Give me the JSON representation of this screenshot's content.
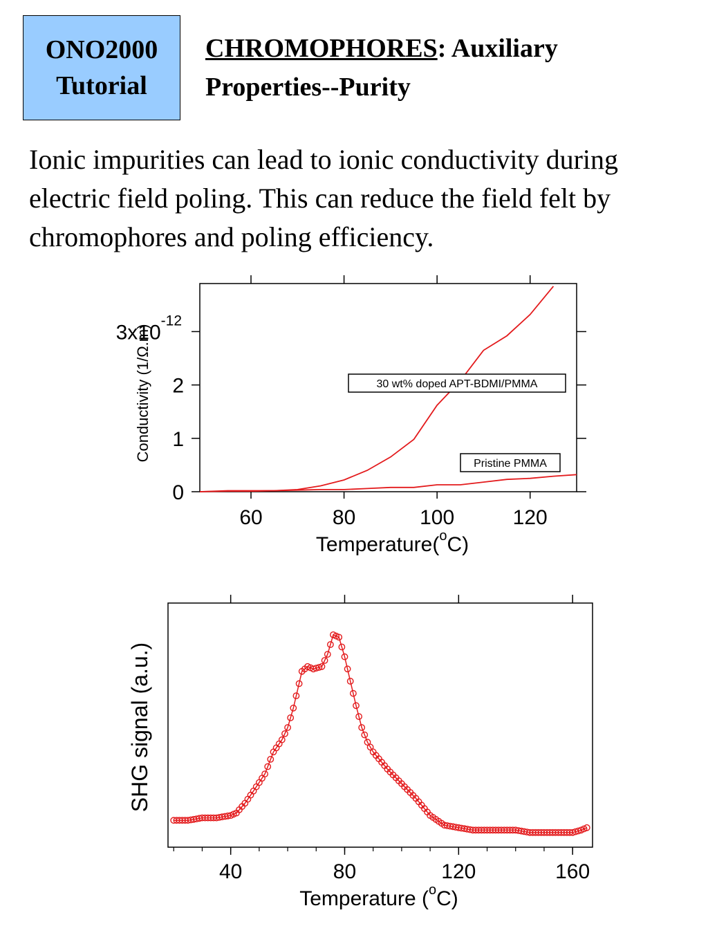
{
  "header": {
    "badge_line1": "ONO2000",
    "badge_line2": "Tutorial",
    "title_underlined": "CHROMOPHORES",
    "title_rest_1": ":  Auxiliary",
    "title_line2": "Properties--Purity",
    "accent_color": "#99ccff"
  },
  "body": {
    "line1": "Ionic impurities can lead to ionic conductivity during",
    "line2": "electric field poling.  This can reduce the field felt by",
    "line3": "chromophores and poling efficiency."
  },
  "chart_data": [
    {
      "type": "line",
      "title": "",
      "xlabel": "Temperature(oC)",
      "ylabel": "Conductivity (1/Ω.m)",
      "xlim": [
        49,
        130
      ],
      "ylim": [
        0,
        3.9
      ],
      "yscale_note": "x10^-12",
      "x_ticks": [
        "60",
        "80",
        "100",
        "120"
      ],
      "y_ticks": [
        "0",
        "1",
        "2",
        "3x10-12"
      ],
      "grid": false,
      "line_color": "#e31a1c",
      "series": [
        {
          "name": "30 wt% doped APT-BDMI/PMMA",
          "x": [
            49,
            55,
            60,
            65,
            70,
            75,
            80,
            85,
            90,
            95,
            100,
            105,
            110,
            115,
            120,
            125
          ],
          "y": [
            0.0,
            0.01,
            0.01,
            0.02,
            0.04,
            0.11,
            0.22,
            0.4,
            0.65,
            0.98,
            1.62,
            2.08,
            2.65,
            2.92,
            3.32,
            3.85
          ]
        },
        {
          "name": "Pristine PMMA",
          "x": [
            49,
            55,
            60,
            65,
            70,
            75,
            80,
            85,
            90,
            95,
            100,
            105,
            110,
            115,
            120,
            125,
            130
          ],
          "y": [
            0.0,
            0.02,
            0.02,
            0.02,
            0.03,
            0.04,
            0.04,
            0.06,
            0.08,
            0.08,
            0.13,
            0.13,
            0.18,
            0.23,
            0.25,
            0.29,
            0.32
          ]
        }
      ]
    },
    {
      "type": "line",
      "title": "",
      "xlabel": "Temperature (oC)",
      "ylabel": "SHG signal (a.u.)",
      "xlim": [
        18,
        167
      ],
      "ylim": [
        0,
        1
      ],
      "x_ticks": [
        "40",
        "80",
        "120",
        "160"
      ],
      "grid": false,
      "line_color": "#e31a1c",
      "marker": "open-circle",
      "series": [
        {
          "name": "",
          "x": [
            20,
            25,
            30,
            35,
            40,
            42,
            45,
            48,
            52,
            55,
            58,
            60,
            62,
            65,
            67,
            69,
            72,
            74,
            76,
            78,
            80,
            82,
            84,
            86,
            88,
            90,
            95,
            100,
            105,
            110,
            115,
            120,
            125,
            130,
            135,
            140,
            145,
            150,
            155,
            160,
            163,
            165
          ],
          "y": [
            0.11,
            0.11,
            0.12,
            0.12,
            0.13,
            0.14,
            0.18,
            0.23,
            0.3,
            0.39,
            0.44,
            0.49,
            0.57,
            0.72,
            0.74,
            0.73,
            0.74,
            0.79,
            0.87,
            0.86,
            0.78,
            0.68,
            0.58,
            0.49,
            0.43,
            0.39,
            0.32,
            0.26,
            0.2,
            0.13,
            0.09,
            0.08,
            0.07,
            0.07,
            0.07,
            0.07,
            0.06,
            0.06,
            0.06,
            0.06,
            0.07,
            0.08
          ]
        }
      ]
    }
  ]
}
